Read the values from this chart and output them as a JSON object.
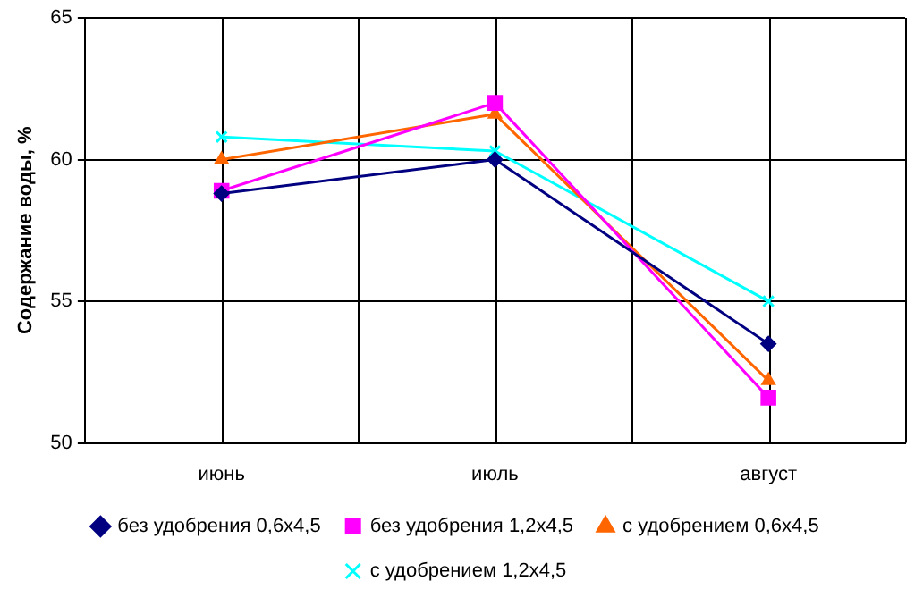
{
  "chart_data": {
    "type": "line",
    "ylabel": "Содержание воды, %",
    "categories": [
      "июнь",
      "июль",
      "август"
    ],
    "series": [
      {
        "name": "без удобрения 0,6х4,5",
        "color": "#000080",
        "marker": "diamond",
        "values": [
          58.8,
          60.0,
          53.5
        ]
      },
      {
        "name": "без удобрения 1,2х4,5",
        "color": "#ff00ff",
        "marker": "square",
        "values": [
          58.9,
          62.0,
          51.6
        ]
      },
      {
        "name": "с удобрением 0,6х4,5",
        "color": "#ff6600",
        "marker": "triangle",
        "values": [
          60.0,
          61.6,
          52.2
        ]
      },
      {
        "name": "с удобрением 1,2х4,5",
        "color": "#00ffff",
        "marker": "cross",
        "values": [
          60.8,
          60.3,
          55.0
        ]
      }
    ],
    "ylim": [
      50,
      65
    ],
    "yticks": [
      50,
      55,
      60,
      65
    ],
    "grid": true,
    "legend": "bottom",
    "line_style": "solid"
  }
}
